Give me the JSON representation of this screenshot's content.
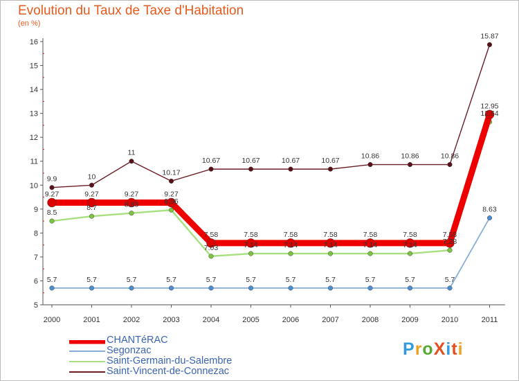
{
  "header": {
    "title": "Evolution du Taux de Taxe d'Habitation",
    "subtitle": "(en %)"
  },
  "logo": {
    "text": "ProXiti",
    "colors": [
      "#3399dd",
      "#f0a020",
      "#55aa33",
      "#e05020",
      "#3399dd",
      "#e05020",
      "#f0a020"
    ]
  },
  "chart_data": {
    "type": "line",
    "title": "Evolution du Taux de Taxe d'Habitation",
    "ylabel": "(en %)",
    "xlabel": "",
    "x": [
      "2000",
      "2001",
      "2002",
      "2003",
      "2004",
      "2005",
      "2006",
      "2007",
      "2008",
      "2009",
      "2010",
      "2011"
    ],
    "ylim": [
      5,
      16
    ],
    "yticks": [
      5,
      6,
      7,
      8,
      9,
      10,
      11,
      12,
      13,
      14,
      15,
      16
    ],
    "grid": false,
    "legend_position": "bottom-left",
    "series": [
      {
        "name": "Saint-Vincent-de-Connezac",
        "color": "#6b1c24",
        "marker_color": "#5a1018",
        "values": [
          9.9,
          10,
          11,
          10.17,
          10.67,
          10.67,
          10.67,
          10.67,
          10.86,
          10.86,
          10.86,
          15.87
        ],
        "labels": [
          "9.9",
          "10",
          "11",
          "10.17",
          "10.67",
          "10.67",
          "10.67",
          "10.67",
          "10.86",
          "10.86",
          "10.86",
          "15.87"
        ]
      },
      {
        "name": "Saint-Germain-du-Salembre",
        "color": "#a8e080",
        "marker_color": "#7cc540",
        "values": [
          8.5,
          8.7,
          8.83,
          8.96,
          7.03,
          7.14,
          7.14,
          7.14,
          7.14,
          7.14,
          7.28,
          12.64
        ],
        "labels": [
          "8.5",
          "8.7",
          "8.83",
          "8.96",
          "7.03",
          "7.14",
          "7.14",
          "7.14",
          "7.14",
          "7.14",
          "7.28",
          "12.64"
        ]
      },
      {
        "name": "Segonzac",
        "color": "#88aed8",
        "marker_color": "#4a8ed0",
        "values": [
          5.7,
          5.7,
          5.7,
          5.7,
          5.7,
          5.7,
          5.7,
          5.7,
          5.7,
          5.7,
          5.7,
          8.63
        ],
        "labels": [
          "5.7",
          "5.7",
          "5.7",
          "5.7",
          "5.7",
          "5.7",
          "5.7",
          "5.7",
          "5.7",
          "5.7",
          "5.7",
          "8.63"
        ]
      },
      {
        "name": "CHANTéRAC",
        "color": "#ee0000",
        "marker_color": "#dd0000",
        "values": [
          9.27,
          9.27,
          9.27,
          9.27,
          7.58,
          7.58,
          7.58,
          7.58,
          7.58,
          7.58,
          7.58,
          12.95
        ],
        "labels": [
          "9.27",
          "9.27",
          "9.27",
          "9.27",
          "7.58",
          "7.58",
          "7.58",
          "7.58",
          "7.58",
          "7.58",
          "7.58",
          "12.95"
        ]
      }
    ],
    "legend": [
      "CHANTéRAC",
      "Segonzac",
      "Saint-Germain-du-Salembre",
      "Saint-Vincent-de-Connezac"
    ]
  }
}
